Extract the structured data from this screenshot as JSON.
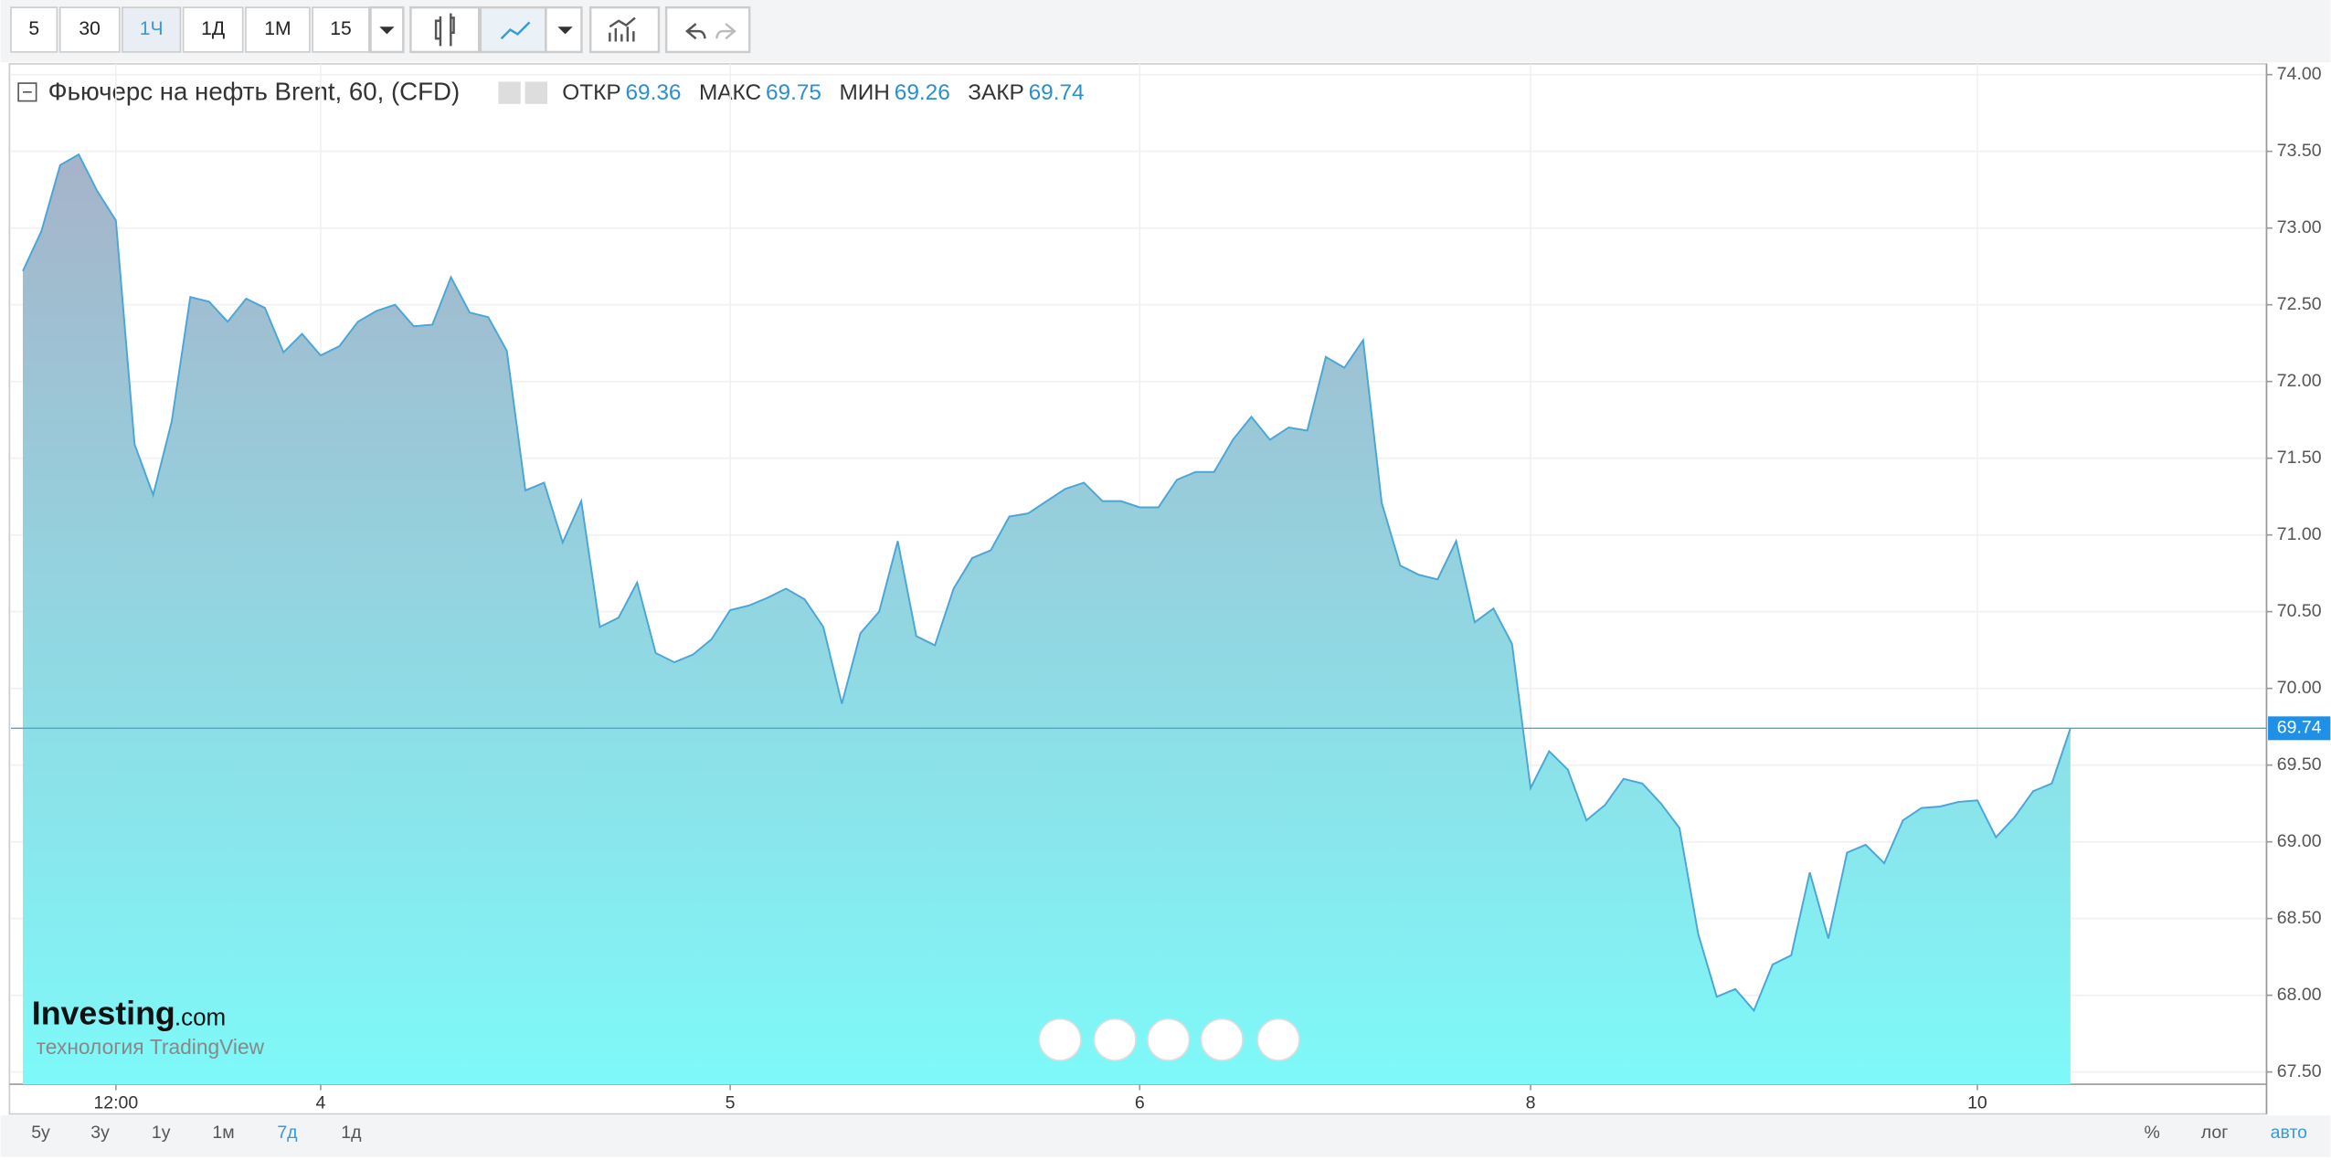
{
  "toolbar": {
    "intervals": [
      "5",
      "30",
      "1Ч",
      "1Д",
      "1М",
      "15"
    ],
    "active_interval": 2
  },
  "chart_data": {
    "type": "area",
    "title": "Фьючерс на нефть Brent, 60, (CFD)",
    "ohlc": [
      {
        "label": "ОТКР",
        "value": "69.36"
      },
      {
        "label": "МАКС",
        "value": "69.75"
      },
      {
        "label": "МИН",
        "value": "69.26"
      },
      {
        "label": "ЗАКР",
        "value": "69.74"
      }
    ],
    "categories": [
      null,
      null,
      null,
      null,
      null,
      "12:00",
      null,
      null,
      null,
      null,
      null,
      null,
      null,
      null,
      null,
      null,
      "4",
      null,
      null,
      null,
      null,
      null,
      null,
      null,
      null,
      null,
      null,
      null,
      null,
      null,
      null,
      null,
      null,
      null,
      null,
      null,
      null,
      null,
      "5",
      null,
      null,
      null,
      null,
      null,
      null,
      null,
      null,
      null,
      null,
      null,
      null,
      null,
      null,
      null,
      null,
      null,
      null,
      null,
      null,
      null,
      "6",
      null,
      null,
      null,
      null,
      null,
      null,
      null,
      null,
      null,
      null,
      null,
      null,
      null,
      null,
      null,
      null,
      null,
      null,
      null,
      null,
      "8",
      null,
      null,
      null,
      null,
      null,
      null,
      null,
      null,
      null,
      null,
      null,
      null,
      null,
      null,
      null,
      null,
      null,
      null,
      null,
      null,
      null,
      null,
      null,
      "10",
      null,
      null,
      null,
      null,
      null
    ],
    "series": [
      {
        "name": "Brent",
        "color": "#4aa6d6",
        "values": [
          72.72,
          72.98,
          73.41,
          73.48,
          73.24,
          73.05,
          71.59,
          71.26,
          71.74,
          72.55,
          72.52,
          72.39,
          72.54,
          72.48,
          72.19,
          72.31,
          72.17,
          72.23,
          72.39,
          72.46,
          72.5,
          72.36,
          72.37,
          72.68,
          72.45,
          72.42,
          72.2,
          71.29,
          71.34,
          70.95,
          71.22,
          70.4,
          70.46,
          70.69,
          70.23,
          70.17,
          70.22,
          70.32,
          70.51,
          70.54,
          70.59,
          70.65,
          70.58,
          70.4,
          69.9,
          70.36,
          70.5,
          70.96,
          70.34,
          70.28,
          70.65,
          70.85,
          70.9,
          71.12,
          71.14,
          71.22,
          71.3,
          71.34,
          71.22,
          71.22,
          71.18,
          71.18,
          71.36,
          71.41,
          71.41,
          71.62,
          71.77,
          71.62,
          71.7,
          71.68,
          72.16,
          72.09,
          72.27,
          71.21,
          70.8,
          70.74,
          70.71,
          70.96,
          70.43,
          70.52,
          70.29,
          69.35,
          69.59,
          69.47,
          69.14,
          69.24,
          69.41,
          69.38,
          69.25,
          69.09,
          68.4,
          67.99,
          68.04,
          67.9,
          68.2,
          68.26,
          68.8,
          68.37,
          68.93,
          68.98,
          68.86,
          69.14,
          69.22,
          69.23,
          69.26,
          69.27,
          69.03,
          69.16,
          69.33,
          69.38,
          69.74
        ]
      }
    ],
    "ylim": [
      67.42,
      74.07
    ],
    "yticks": [
      {
        "value": 67.5,
        "label": "67.50"
      },
      {
        "value": 68,
        "label": "68.00"
      },
      {
        "value": 68.5,
        "label": "68.50"
      },
      {
        "value": 69,
        "label": "69.00"
      },
      {
        "value": 69.5,
        "label": "69.50"
      },
      {
        "value": 70,
        "label": "70.00"
      },
      {
        "value": 70.5,
        "label": "70.50"
      },
      {
        "value": 71,
        "label": "71.00"
      },
      {
        "value": 71.5,
        "label": "71.50"
      },
      {
        "value": 72,
        "label": "72.00"
      },
      {
        "value": 72.5,
        "label": "72.50"
      },
      {
        "value": 73,
        "label": "73.00"
      },
      {
        "value": 73.5,
        "label": "73.50"
      },
      {
        "value": 74,
        "label": "74.00"
      }
    ],
    "grid": true
  },
  "watermark": {
    "brand": "Investing",
    "suffix": ".com",
    "tagline": "технология TradingView"
  },
  "ranges": {
    "buttons": [
      "5y",
      "3y",
      "1y",
      "1м",
      "7д",
      "1д"
    ],
    "active": 4
  },
  "scale": {
    "buttons": [
      "%",
      "лог",
      "авто"
    ],
    "active": 2
  }
}
